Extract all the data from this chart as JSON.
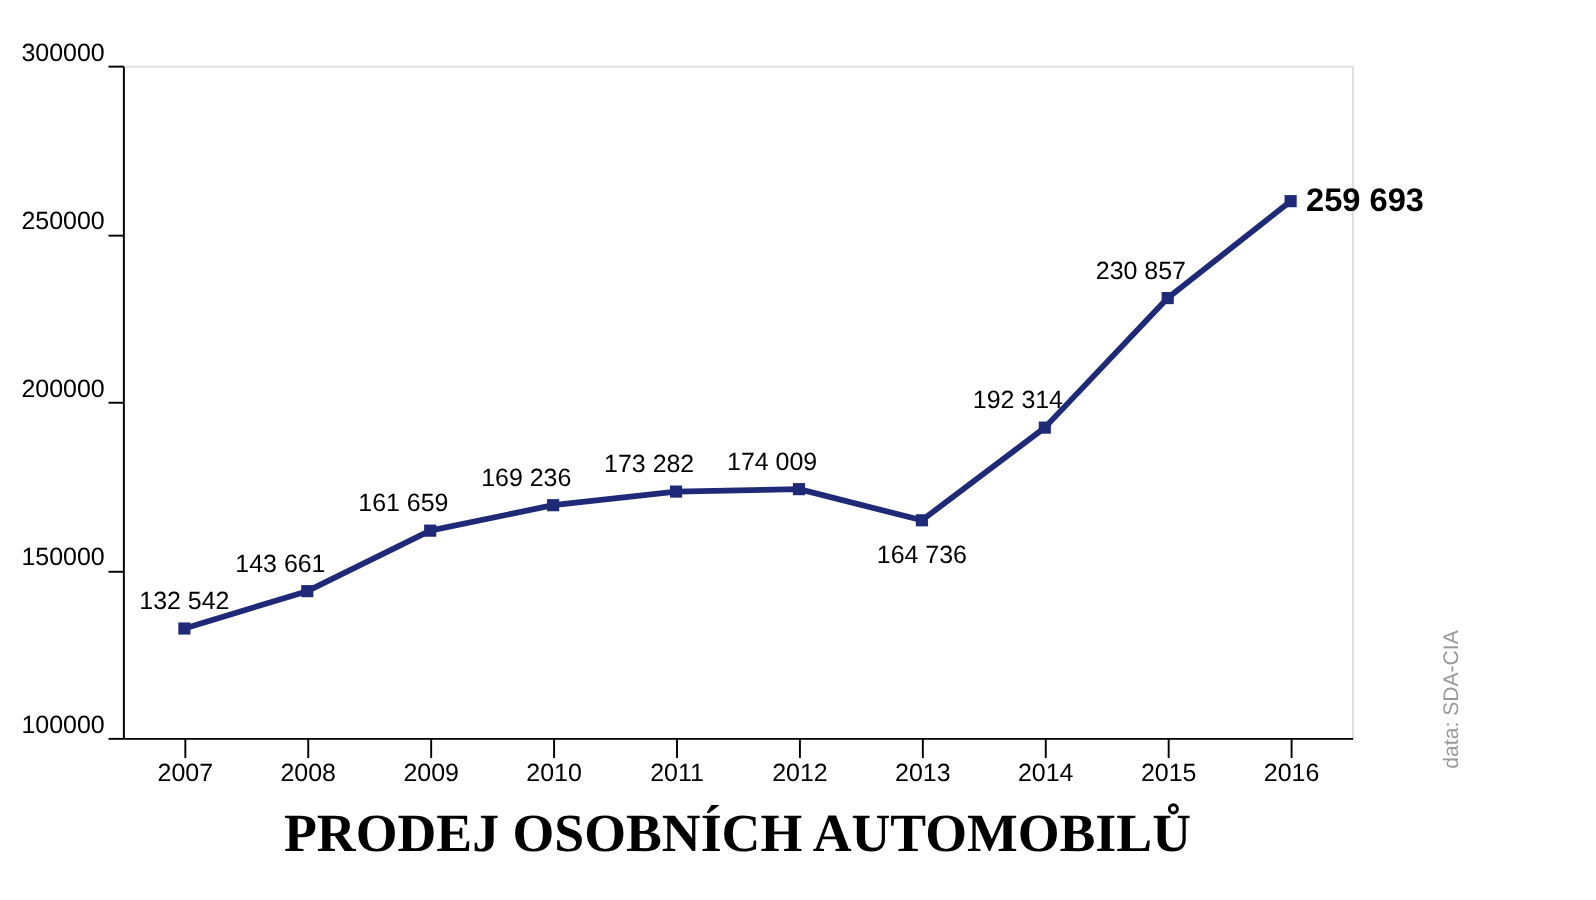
{
  "chart_data": {
    "type": "line",
    "title": "PRODEJ OSOBNÍCH AUTOMOBILŮ",
    "categories": [
      "2007",
      "2008",
      "2009",
      "2010",
      "2011",
      "2012",
      "2013",
      "2014",
      "2015",
      "2016"
    ],
    "series": [
      {
        "color": "#1e2a78",
        "values": [
          132542,
          143661,
          161659,
          169236,
          173282,
          174009,
          164736,
          192314,
          230857,
          259693
        ],
        "value_labels": [
          "132 542",
          "143 661",
          "161 659",
          "169 236",
          "173 282",
          "174 009",
          "164 736",
          "192 314",
          "230 857",
          "259 693"
        ]
      }
    ],
    "ylim": [
      100000,
      300000
    ],
    "yticks": [
      100000,
      150000,
      200000,
      250000,
      300000
    ],
    "grid": false,
    "marker": "square",
    "line_style": "solid",
    "annotations": [
      "data: SDA-CIA"
    ]
  }
}
